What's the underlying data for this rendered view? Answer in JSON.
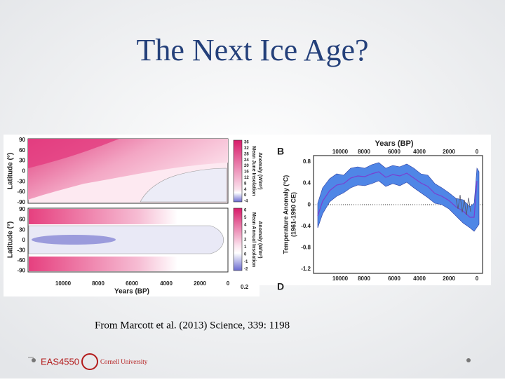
{
  "title": "The Next Ice Age?",
  "figure": {
    "left": {
      "y_label": "Latitude (°)",
      "lat_ticks": [
        "90",
        "60",
        "30",
        "0",
        "-30",
        "-60",
        "-90"
      ],
      "x_label": "Years (BP)",
      "x_ticks": [
        "10000",
        "8000",
        "6000",
        "4000",
        "2000",
        "0"
      ],
      "top_colorbar": {
        "label_1": "Mean June Insolation",
        "label_2": "Anomaly (W/m²)",
        "ticks": [
          "36",
          "32",
          "28",
          "24",
          "20",
          "16",
          "12",
          "8",
          "4",
          "0",
          "-4"
        ]
      },
      "bottom_colorbar": {
        "label_1": "Mean Annual Insolation",
        "label_2": "Anomaly (W/m²)",
        "ticks": [
          "6",
          "5",
          "4",
          "3",
          "2",
          "1",
          "0",
          "-1",
          "-2"
        ]
      },
      "corner_tick": "0.2"
    },
    "right": {
      "panel_label": "B",
      "lower_panel_label": "D",
      "x_label": "Years (BP)",
      "x_ticks": [
        "10000",
        "8000",
        "6000",
        "4000",
        "2000",
        "0"
      ],
      "y_label_1": "Temperature Anomaly (°C)",
      "y_label_2": "(1961-1990 CE)",
      "y_ticks": [
        "0.8",
        "0.4",
        "0",
        "-0.4",
        "-0.8",
        "-1.2"
      ]
    }
  },
  "caption": "From Marcott et al. (2013) Science, 339: 1198",
  "footer": {
    "course": "EAS4550",
    "university": "Cornell University"
  }
}
